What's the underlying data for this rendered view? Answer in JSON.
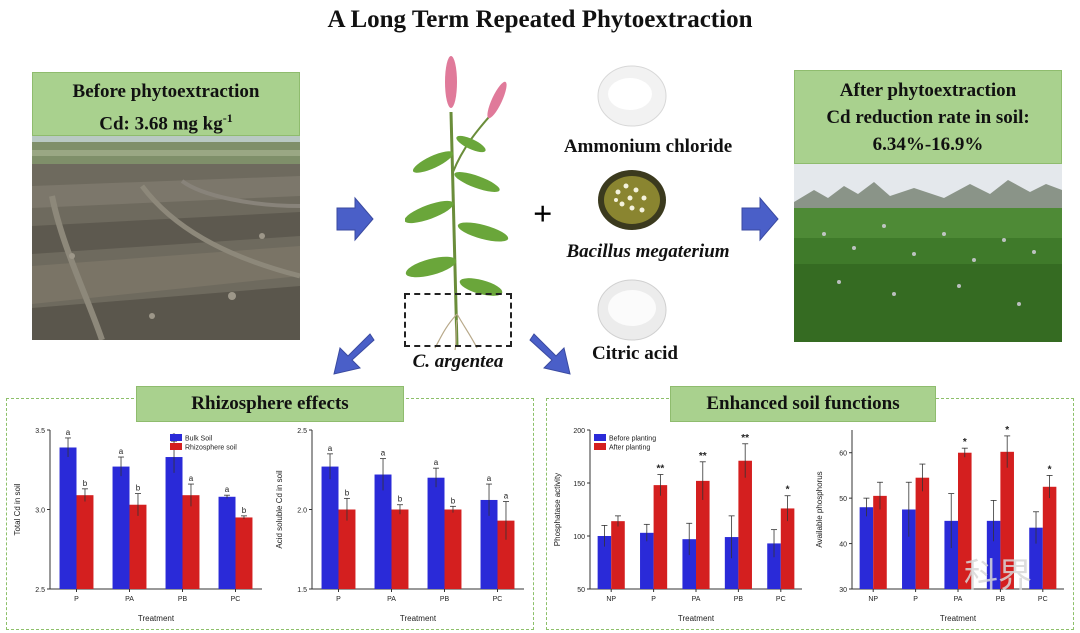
{
  "title": "A Long Term Repeated Phytoextraction",
  "before": {
    "line1": "Before phytoextraction",
    "line2_prefix": "Cd: 3.68 mg kg",
    "line2_sup": "-1"
  },
  "after": {
    "line1": "After phytoextraction",
    "line2": "Cd reduction rate in soil:",
    "line3": "6.34%-16.9%"
  },
  "plant_label": "C. argentea",
  "plus": "+",
  "reagents": [
    "Ammonium chloride",
    "Bacillus megaterium",
    "Citric acid"
  ],
  "panels": {
    "rhizosphere_title": "Rhizosphere effects",
    "soil_title": "Enhanced soil functions"
  },
  "watermark": "科界",
  "colors": {
    "blue": "#2a2ad8",
    "red": "#d41f1f",
    "green_box": "#a9d18e",
    "arrow": "#4a5fc8"
  },
  "chart_data": [
    {
      "type": "bar",
      "xlabel": "Treatment",
      "ylabel": "Total Cd in soil",
      "categories": [
        "P",
        "PA",
        "PB",
        "PC"
      ],
      "ylim": [
        2.5,
        3.5
      ],
      "yticks": [
        "2.5",
        "3.0",
        "3.5"
      ],
      "legend": "top-right",
      "series": [
        {
          "name": "Bulk Soil",
          "values": [
            3.39,
            3.27,
            3.33,
            3.08
          ],
          "errors": [
            0.06,
            0.06,
            0.1,
            0.01
          ],
          "labels": [
            "a",
            "a",
            "a",
            "a"
          ]
        },
        {
          "name": "Rhizosphere soil",
          "values": [
            3.09,
            3.03,
            3.09,
            2.95
          ],
          "errors": [
            0.04,
            0.07,
            0.07,
            0.01
          ],
          "labels": [
            "b",
            "b",
            "a",
            "b"
          ]
        }
      ]
    },
    {
      "type": "bar",
      "xlabel": "Treatment",
      "ylabel": "Acid soluble Cd in soil",
      "categories": [
        "P",
        "PA",
        "PB",
        "PC"
      ],
      "ylim": [
        1.5,
        2.5
      ],
      "yticks": [
        "1.5",
        "2.0",
        "2.5"
      ],
      "series": [
        {
          "name": "Bulk Soil",
          "values": [
            2.27,
            2.22,
            2.2,
            2.06
          ],
          "errors": [
            0.08,
            0.1,
            0.06,
            0.1
          ],
          "labels": [
            "a",
            "a",
            "a",
            "a"
          ]
        },
        {
          "name": "Rhizosphere soil",
          "values": [
            2.0,
            2.0,
            2.0,
            1.93
          ],
          "errors": [
            0.07,
            0.03,
            0.02,
            0.12
          ],
          "labels": [
            "b",
            "b",
            "b",
            "a"
          ]
        }
      ]
    },
    {
      "type": "bar",
      "xlabel": "Treatment",
      "ylabel": "Phosphatase activity",
      "categories": [
        "NP",
        "P",
        "PA",
        "PB",
        "PC"
      ],
      "ylim": [
        50,
        200
      ],
      "yticks": [
        "50",
        "100",
        "150",
        "200"
      ],
      "legend": "top-left",
      "series": [
        {
          "name": "Before planting",
          "values": [
            100,
            103,
            97,
            99,
            93
          ],
          "errors": [
            10,
            8,
            15,
            20,
            13
          ],
          "labels": [
            "",
            "",
            "",
            "",
            ""
          ]
        },
        {
          "name": "After planting",
          "values": [
            114,
            148,
            152,
            171,
            126
          ],
          "errors": [
            5,
            10,
            18,
            16,
            12
          ],
          "labels": [
            "",
            "**",
            "**",
            "**",
            "*"
          ]
        }
      ]
    },
    {
      "type": "bar",
      "xlabel": "Treatment",
      "ylabel": "Available phosphorus",
      "categories": [
        "NP",
        "P",
        "PA",
        "PB",
        "PC"
      ],
      "ylim": [
        30,
        65
      ],
      "yticks": [
        "30",
        "40",
        "50",
        "60"
      ],
      "series": [
        {
          "name": "Before planting",
          "values": [
            48,
            47.5,
            45,
            45,
            43.5
          ],
          "errors": [
            2,
            6,
            6,
            4.5,
            3.5
          ],
          "labels": [
            "",
            "",
            "",
            "",
            ""
          ]
        },
        {
          "name": "After planting",
          "values": [
            50.5,
            54.5,
            60,
            60.2,
            52.5
          ],
          "errors": [
            3,
            3,
            1,
            3.5,
            2.5
          ],
          "labels": [
            "",
            "",
            "*",
            "*",
            "*"
          ]
        }
      ]
    }
  ]
}
